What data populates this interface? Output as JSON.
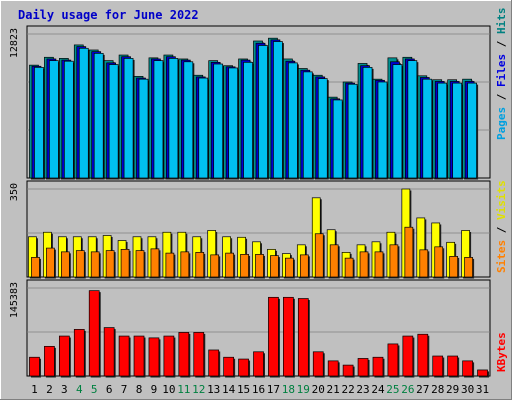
{
  "chart_data": [
    {
      "type": "bar",
      "title": "Daily usage for June 2022",
      "categories": [
        "1",
        "2",
        "3",
        "4",
        "5",
        "6",
        "7",
        "8",
        "9",
        "10",
        "11",
        "12",
        "13",
        "14",
        "15",
        "16",
        "17",
        "18",
        "19",
        "20",
        "21",
        "22",
        "23",
        "24",
        "25",
        "26",
        "27",
        "28",
        "29",
        "30",
        "31"
      ],
      "weekend_days": [
        "4",
        "5",
        "11",
        "12",
        "18",
        "19",
        "25",
        "26"
      ],
      "ylabel_parts": [
        "Pages",
        "Files",
        "Hits"
      ],
      "ylabel_colors": [
        "#00a0e0",
        "#0000e0",
        "#008080"
      ],
      "ymax_label": "12823",
      "ylim": [
        0,
        12823
      ],
      "series": [
        {
          "name": "Hits",
          "color": "#009090",
          "values": [
            10050,
            10750,
            10650,
            11850,
            11400,
            10450,
            10950,
            9050,
            10700,
            10950,
            10600,
            9150,
            10450,
            10000,
            10600,
            12200,
            12450,
            10600,
            9750,
            9150,
            7200,
            8550,
            10200,
            8800,
            10700,
            10750,
            9100,
            8750,
            8750,
            8800,
            null
          ]
        },
        {
          "name": "Files",
          "color": "#0000d0",
          "values": [
            9950,
            10600,
            10500,
            11700,
            11250,
            10250,
            10800,
            8900,
            10600,
            10800,
            10500,
            9000,
            10300,
            9900,
            10500,
            12000,
            12300,
            10400,
            9600,
            9000,
            7050,
            8450,
            10000,
            8700,
            10350,
            10600,
            8950,
            8600,
            8600,
            8600,
            null
          ]
        },
        {
          "name": "Pages",
          "color": "#00c0f0",
          "values": [
            9850,
            10450,
            10400,
            11550,
            11100,
            10100,
            10650,
            8800,
            10450,
            10650,
            10350,
            8900,
            10150,
            9800,
            10300,
            11800,
            12150,
            10250,
            9450,
            8850,
            6950,
            8350,
            9850,
            8550,
            10100,
            10450,
            8800,
            8450,
            8450,
            8450,
            null
          ]
        }
      ]
    },
    {
      "type": "bar",
      "ylabel_parts": [
        "Sites",
        "Visits"
      ],
      "ylabel_colors": [
        "#ff8000",
        "#e0e000"
      ],
      "ymax_label": "350",
      "ylim": [
        0,
        350
      ],
      "series": [
        {
          "name": "Visits",
          "color": "#ffff00",
          "values": [
            160,
            178,
            160,
            160,
            160,
            165,
            145,
            160,
            160,
            178,
            178,
            160,
            185,
            160,
            158,
            140,
            110,
            93,
            128,
            315,
            188,
            98,
            128,
            140,
            178,
            350,
            235,
            215,
            138,
            185,
            null
          ]
        },
        {
          "name": "Sites",
          "color": "#ff8000",
          "values": [
            78,
            115,
            100,
            105,
            100,
            105,
            110,
            105,
            112,
            95,
            100,
            98,
            88,
            95,
            90,
            90,
            85,
            75,
            88,
            172,
            128,
            75,
            100,
            100,
            128,
            198,
            108,
            120,
            82,
            78,
            null
          ]
        }
      ]
    },
    {
      "type": "bar",
      "ylabel_parts": [
        "KBytes"
      ],
      "ylabel_colors": [
        "#ff0000"
      ],
      "ymax_label": "145383",
      "ylim": [
        0,
        145383
      ],
      "series": [
        {
          "name": "KBytes",
          "color": "#ff0000",
          "values": [
            31000,
            49000,
            66000,
            77000,
            141000,
            80000,
            66000,
            66000,
            63000,
            66000,
            72000,
            72000,
            43000,
            31000,
            28000,
            40000,
            130000,
            130000,
            128000,
            40000,
            25000,
            18000,
            29000,
            31000,
            53000,
            66000,
            69000,
            33000,
            33000,
            25000,
            10000
          ]
        }
      ]
    }
  ]
}
